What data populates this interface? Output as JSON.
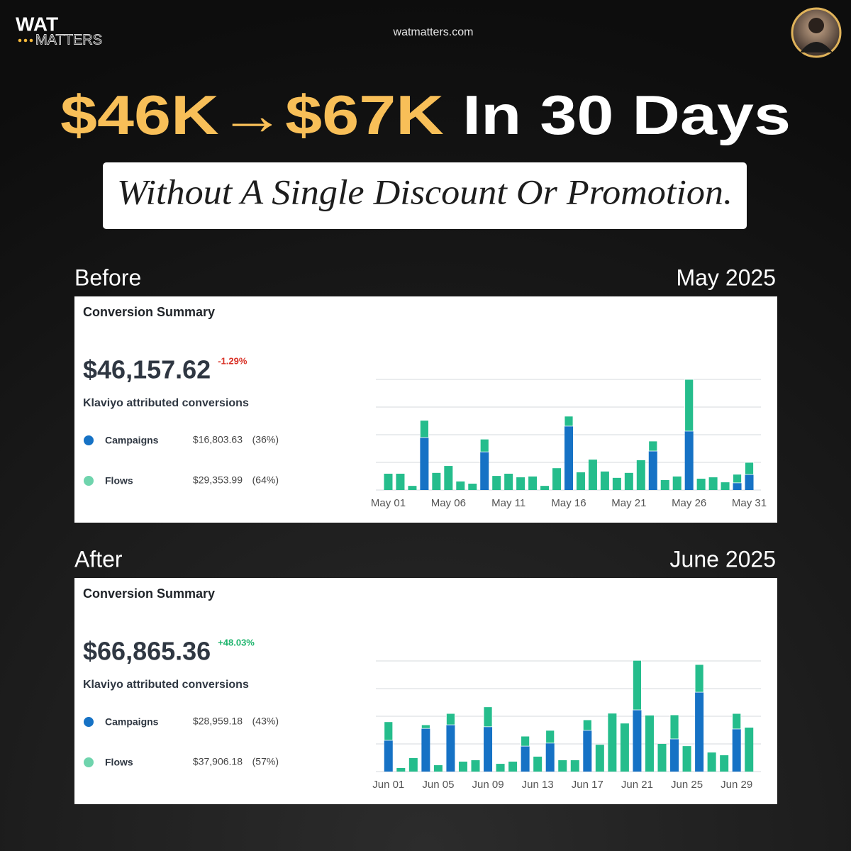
{
  "header": {
    "logo_top": "WAT",
    "logo_bottom": "MATTERS",
    "url": "watmatters.com"
  },
  "headline": {
    "highlight": "$46K→$67K",
    "rest": "In 30 Days"
  },
  "banner": "Without A Single Discount Or Promotion.",
  "chart_data": [
    {
      "type": "bar",
      "stacked": true,
      "label": "Before",
      "period": "May 2025",
      "title": "Conversion Summary",
      "total": "$46,157.62",
      "change": "-1.29%",
      "change_color": "#d93025",
      "subtitle": "Klaviyo attributed conversions",
      "categories": [
        "May 01",
        null,
        null,
        null,
        null,
        "May 06",
        null,
        null,
        null,
        null,
        "May 11",
        null,
        null,
        null,
        null,
        "May 16",
        null,
        null,
        null,
        null,
        "May 21",
        null,
        null,
        null,
        null,
        "May 26",
        null,
        null,
        null,
        null,
        "May 31"
      ],
      "series": [
        {
          "name": "Campaigns",
          "color": "#1672c5",
          "amount": "$16,803.63",
          "share": "(36%)",
          "values": [
            0,
            0,
            0,
            1.9,
            0,
            0,
            0,
            0,
            1.38,
            0,
            0,
            0,
            0,
            0,
            0,
            2.31,
            0,
            0,
            0,
            0,
            0,
            0,
            1.41,
            0,
            0,
            2.13,
            0,
            0,
            0,
            0.26,
            0.56
          ]
        },
        {
          "name": "Flows",
          "color": "#25bd8c",
          "amount": "$29,353.99",
          "share": "(64%)",
          "values": [
            0.59,
            0.59,
            0.15,
            0.62,
            0.62,
            0.87,
            0.31,
            0.23,
            0.46,
            0.51,
            0.59,
            0.46,
            0.49,
            0.15,
            0.79,
            0.36,
            0.64,
            1.1,
            0.67,
            0.44,
            0.62,
            1.08,
            0.36,
            0.36,
            0.49,
            1.87,
            0.41,
            0.46,
            0.28,
            0.31,
            0.44
          ]
        }
      ],
      "ylim": [
        0,
        4
      ],
      "yticks": [
        0,
        1,
        2,
        3,
        4
      ],
      "grid": true
    },
    {
      "type": "bar",
      "stacked": true,
      "label": "After",
      "period": "June 2025",
      "title": "Conversion Summary",
      "total": "$66,865.36",
      "change": "+48.03%",
      "change_color": "#1db46c",
      "subtitle": "Klaviyo attributed conversions",
      "categories": [
        "Jun 01",
        null,
        null,
        null,
        "Jun 05",
        null,
        null,
        null,
        "Jun 09",
        null,
        null,
        null,
        "Jun 13",
        null,
        null,
        null,
        "Jun 17",
        null,
        null,
        null,
        "Jun 21",
        null,
        null,
        null,
        "Jun 25",
        null,
        null,
        null,
        "Jun 29",
        null
      ],
      "series": [
        {
          "name": "Campaigns",
          "color": "#1672c5",
          "amount": "$28,959.18",
          "share": "(43%)",
          "values": [
            1.13,
            0,
            0,
            1.56,
            0,
            1.69,
            0,
            0,
            1.62,
            0,
            0,
            0.92,
            0,
            1.03,
            0,
            0,
            1.49,
            0,
            0,
            0,
            2.23,
            0,
            0,
            1.18,
            0,
            2.87,
            0,
            0,
            1.54,
            0
          ]
        },
        {
          "name": "Flows",
          "color": "#25bd8c",
          "amount": "$37,906.18",
          "share": "(57%)",
          "values": [
            0.67,
            0.13,
            0.49,
            0.13,
            0.23,
            0.41,
            0.36,
            0.41,
            0.72,
            0.28,
            0.36,
            0.36,
            0.54,
            0.46,
            0.41,
            0.41,
            0.38,
            0.97,
            2.1,
            1.74,
            1.79,
            2.03,
            1,
            0.87,
            0.92,
            1,
            0.69,
            0.59,
            0.56,
            1.59
          ]
        }
      ],
      "ylim": [
        0,
        4
      ],
      "yticks": [
        0,
        1,
        2,
        3,
        4
      ],
      "grid": true
    }
  ]
}
